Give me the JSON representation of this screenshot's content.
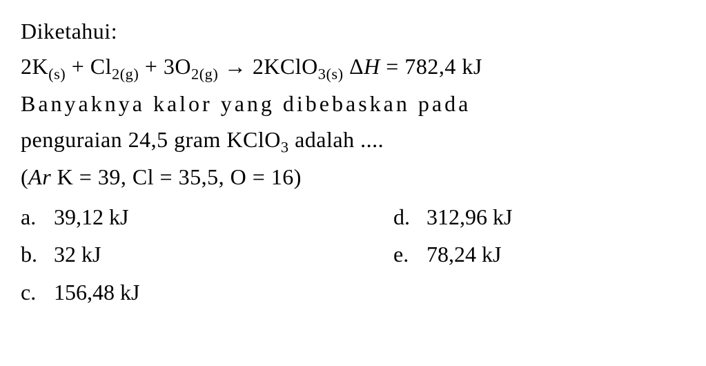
{
  "problem": {
    "given_label": "Diketahui:",
    "equation": {
      "lhs_k": "2K",
      "lhs_k_sub": "(s)",
      "plus1": " + ",
      "lhs_cl": "Cl",
      "lhs_cl_sub": "2(g)",
      "plus2": " + ",
      "lhs_o": "3O",
      "lhs_o_sub": "2(g)",
      "arrow": " → ",
      "rhs_kclo": "2KClO",
      "rhs_kclo_sub": "3(s)",
      "delta": "  Δ",
      "h_var": "H",
      "equals": " = 782,4 kJ"
    },
    "question_line1": "Banyaknya kalor yang dibebaskan pada",
    "question_line2_a": "penguraian 24,5 gram KClO",
    "question_line2_sub": "3",
    "question_line2_b": " adalah ....",
    "ar_open": "(",
    "ar_var": "Ar",
    "ar_values": " K = 39, Cl = 35,5, O = 16)"
  },
  "options": {
    "a": {
      "label": "a.",
      "value": "39,12 kJ"
    },
    "b": {
      "label": "b.",
      "value": "32 kJ"
    },
    "c": {
      "label": "c.",
      "value": "156,48 kJ"
    },
    "d": {
      "label": "d.",
      "value": "312,96 kJ"
    },
    "e": {
      "label": "e.",
      "value": "78,24 kJ"
    }
  },
  "style": {
    "background_color": "#ffffff",
    "text_color": "#000000",
    "font_family": "Georgia, Times New Roman, serif",
    "base_fontsize": 32
  }
}
